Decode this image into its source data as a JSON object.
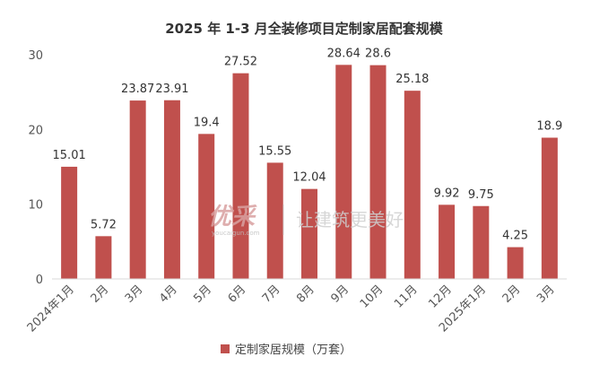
{
  "chart_data": {
    "type": "bar",
    "title": "2025 年 1-3 月全装修项目定制家居配套规模",
    "categories": [
      "2024年1月",
      "2月",
      "3月",
      "4月",
      "5月",
      "6月",
      "7月",
      "8月",
      "9月",
      "10月",
      "11月",
      "12月",
      "2025年1月",
      "2月",
      "3月"
    ],
    "series": [
      {
        "name": "定制家居规模（万套）",
        "values": [
          15.01,
          5.72,
          23.87,
          23.91,
          19.4,
          27.52,
          15.55,
          12.04,
          28.64,
          28.6,
          25.18,
          9.92,
          9.75,
          4.25,
          18.9
        ],
        "labels": [
          "15.01",
          "5.72",
          "23.87",
          "23.91",
          "19.4",
          "27.52",
          "15.55",
          "12.04",
          "28.64",
          "28.6",
          "25.18",
          "9.92",
          "9.75",
          "4.25",
          "18.9"
        ]
      }
    ],
    "ylim": [
      0,
      30
    ],
    "yticks": [
      0,
      10,
      20,
      30
    ],
    "xlabel": "",
    "ylabel": "",
    "grid": false,
    "legend_position": "bottom",
    "bar_color": "#c0504d"
  },
  "watermark": {
    "logo": "优采",
    "subtext": "youcaigun.com",
    "slogan": "让建筑更美好"
  }
}
